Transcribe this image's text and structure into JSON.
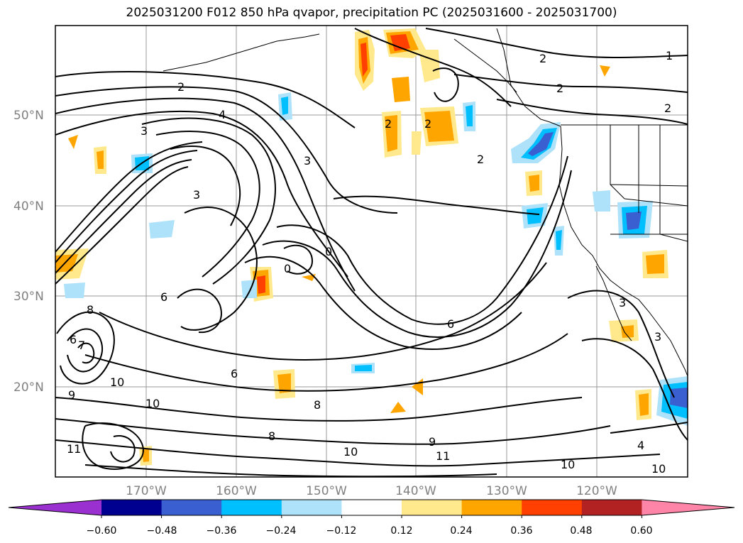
{
  "title": "2025031200 F012 850 hPa qvapor, precipitation PC (2025031600 - 2025031700)",
  "map": {
    "lat_labels": [
      "50°N",
      "40°N",
      "30°N",
      "20°N"
    ],
    "lon_labels": [
      "170°W",
      "160°W",
      "150°W",
      "140°W",
      "130°W",
      "120°W"
    ],
    "grid": true,
    "contour_labels": [
      "1",
      "2",
      "2",
      "2",
      "2",
      "2",
      "2",
      "2",
      "3",
      "3",
      "3",
      "3",
      "3",
      "4",
      "4",
      "6",
      "6",
      "6",
      "6",
      "7",
      "8",
      "8",
      "8",
      "9",
      "9",
      "10",
      "10",
      "10",
      "10",
      "10",
      "11",
      "11",
      "0",
      "0"
    ]
  },
  "colorbar": {
    "ticks": [
      "−0.60",
      "−0.48",
      "−0.36",
      "−0.24",
      "−0.12",
      "0.12",
      "0.24",
      "0.36",
      "0.48",
      "0.60"
    ],
    "colors": [
      "#9b30d0",
      "#000090",
      "#3a5fd0",
      "#00bfff",
      "#aee2fa",
      "#ffffff",
      "#ffe98c",
      "#ffa500",
      "#ff4000",
      "#b22222",
      "#ff85a8"
    ],
    "extend": "both"
  }
}
